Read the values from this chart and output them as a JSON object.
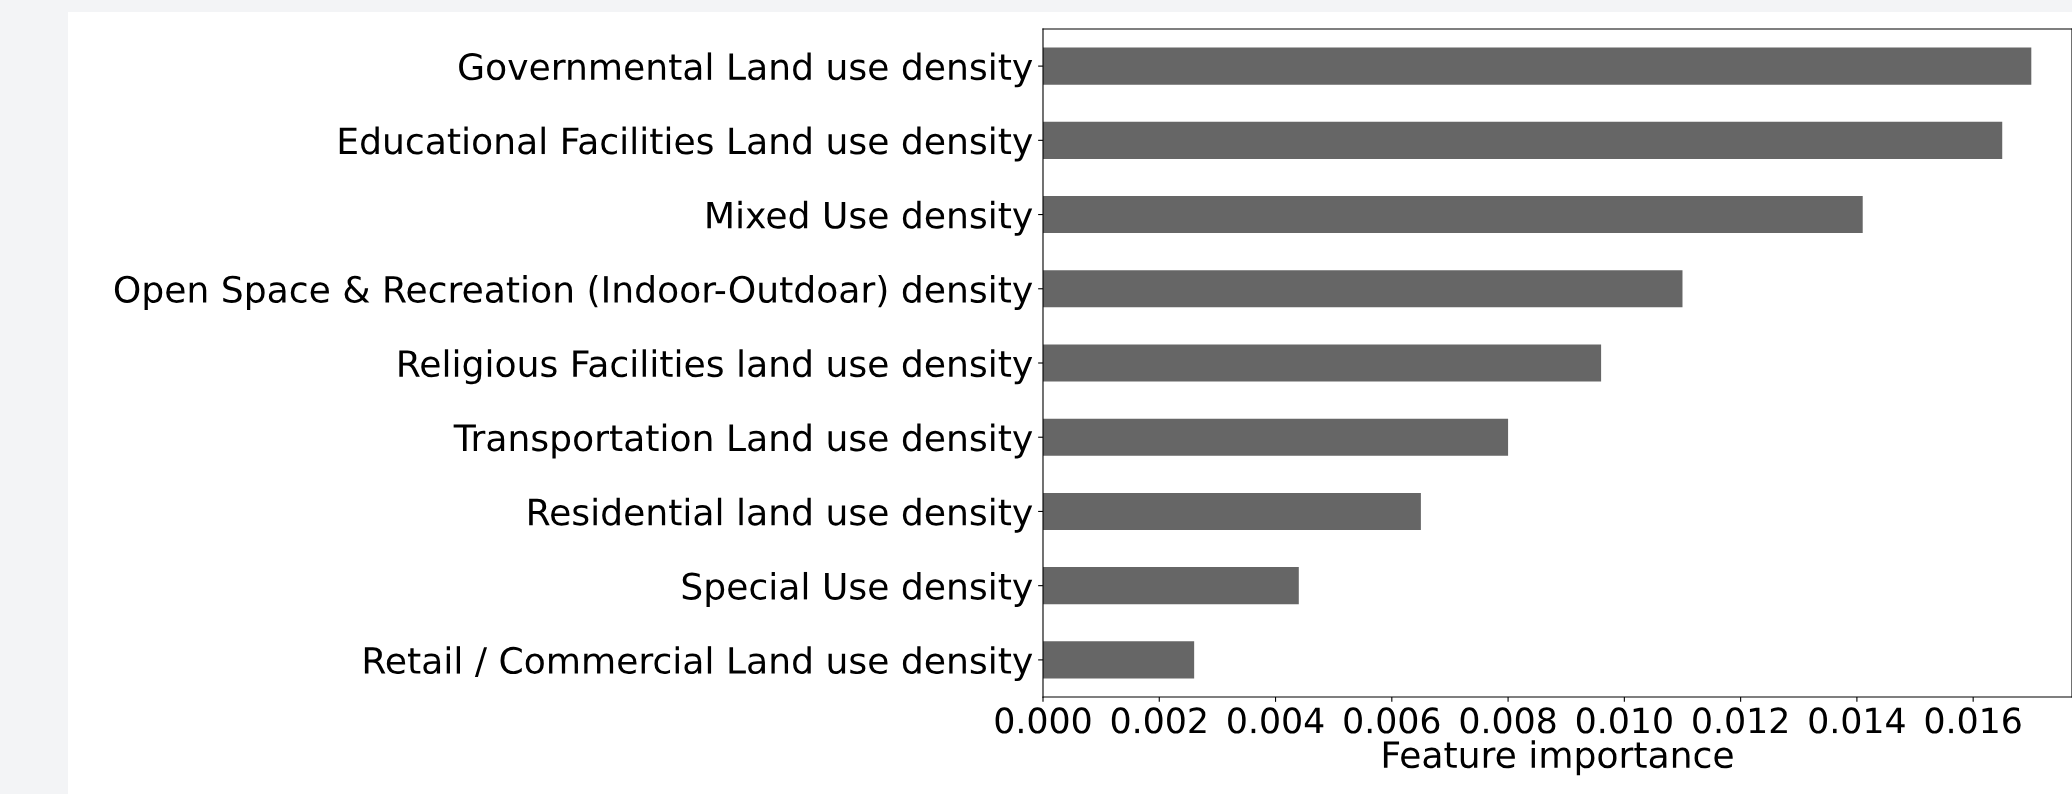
{
  "chart_data": {
    "type": "bar",
    "orientation": "horizontal",
    "xlabel": "Feature importance",
    "categories": [
      "Governmental Land use density",
      "Educational Facilities Land use density",
      "Mixed Use density",
      "Open Space & Recreation (Indoor-Outdoar) density",
      "Religious Facilities land use density",
      "Transportation Land use density",
      "Residential land use density",
      "Special Use density",
      "Retail / Commercial Land use density"
    ],
    "values": [
      0.017,
      0.0165,
      0.0141,
      0.011,
      0.0096,
      0.008,
      0.0065,
      0.0044,
      0.0026
    ],
    "color": "#666666",
    "xlim": [
      0,
      0.0177
    ],
    "xticks": [
      {
        "value": 0,
        "label": "0.000"
      },
      {
        "value": 0.002,
        "label": "0.002"
      },
      {
        "value": 0.004,
        "label": "0.004"
      },
      {
        "value": 0.006,
        "label": "0.006"
      },
      {
        "value": 0.008,
        "label": "0.008"
      },
      {
        "value": 0.01,
        "label": "0.010"
      },
      {
        "value": 0.012,
        "label": "0.012"
      },
      {
        "value": 0.014,
        "label": "0.014"
      },
      {
        "value": 0.016,
        "label": "0.016"
      }
    ],
    "grid": false,
    "legend": false
  }
}
